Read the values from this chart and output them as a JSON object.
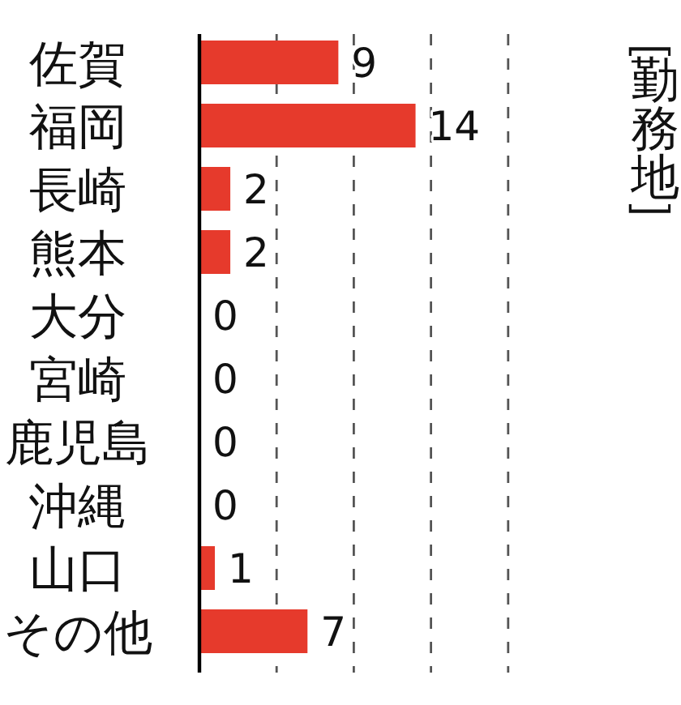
{
  "chart_data": {
    "type": "bar",
    "orientation": "horizontal",
    "title": "［勤務地］",
    "categories": [
      "佐賀",
      "福岡",
      "長崎",
      "熊本",
      "大分",
      "宮崎",
      "鹿児島",
      "沖縄",
      "山口",
      "その他"
    ],
    "values": [
      9,
      14,
      2,
      2,
      0,
      0,
      0,
      0,
      1,
      7
    ],
    "color": "#e63a2c",
    "xlim": [
      0,
      20
    ],
    "xticks": [
      {
        "value": 5,
        "label": null
      },
      {
        "value": 10,
        "label": null
      },
      {
        "value": 15,
        "label": null
      },
      {
        "value": 20,
        "label": null
      }
    ],
    "grid": "x",
    "data_labels": true
  }
}
